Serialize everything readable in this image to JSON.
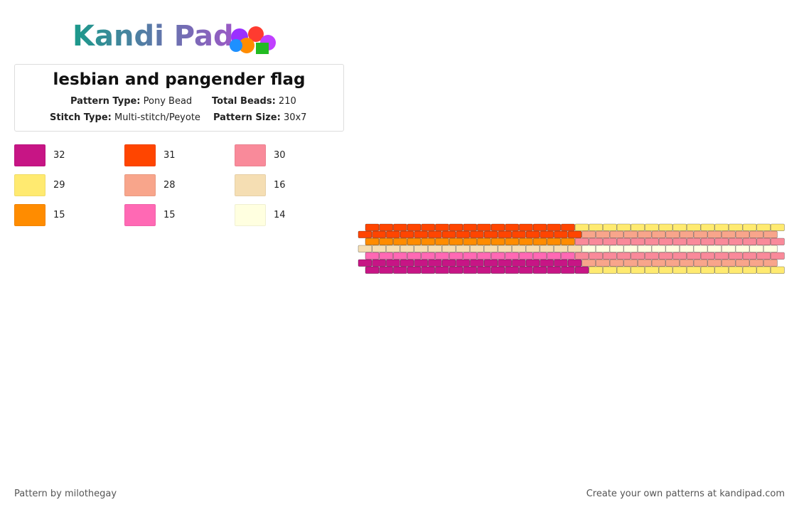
{
  "logo": "Kandi Pad",
  "title": "lesbian and pangender flag",
  "info": [
    {
      "label": "Pattern Type:",
      "value": "Pony Bead"
    },
    {
      "label": "Total Beads:",
      "value": "210"
    },
    {
      "label": "Stitch Type:",
      "value": "Multi-stitch/Peyote"
    },
    {
      "label": "Pattern Size:",
      "value": "30x7"
    }
  ],
  "palette": [
    {
      "color": "#c71585",
      "count": 32
    },
    {
      "color": "#ff4500",
      "count": 31
    },
    {
      "color": "#f98a9a",
      "count": 30
    },
    {
      "color": "#ffea70",
      "count": 29
    },
    {
      "color": "#f8a58b",
      "count": 28
    },
    {
      "color": "#f5deb3",
      "count": 16
    },
    {
      "color": "#ff8c00",
      "count": 15
    },
    {
      "color": "#ff69b4",
      "count": 15
    },
    {
      "color": "#ffffe0",
      "count": 14
    }
  ],
  "pattern": [
    [
      [
        1,
        15
      ],
      [
        3,
        15
      ]
    ],
    [
      [
        1,
        16
      ],
      [
        4,
        14
      ]
    ],
    [
      [
        6,
        15
      ],
      [
        2,
        15
      ]
    ],
    [
      [
        5,
        16
      ],
      [
        8,
        14
      ]
    ],
    [
      [
        7,
        15
      ],
      [
        2,
        15
      ]
    ],
    [
      [
        0,
        16
      ],
      [
        4,
        14
      ]
    ],
    [
      [
        0,
        16
      ],
      [
        3,
        14
      ]
    ]
  ],
  "footer": {
    "left": "Pattern by milothegay",
    "right": "Create your own patterns at kandipad.com"
  }
}
